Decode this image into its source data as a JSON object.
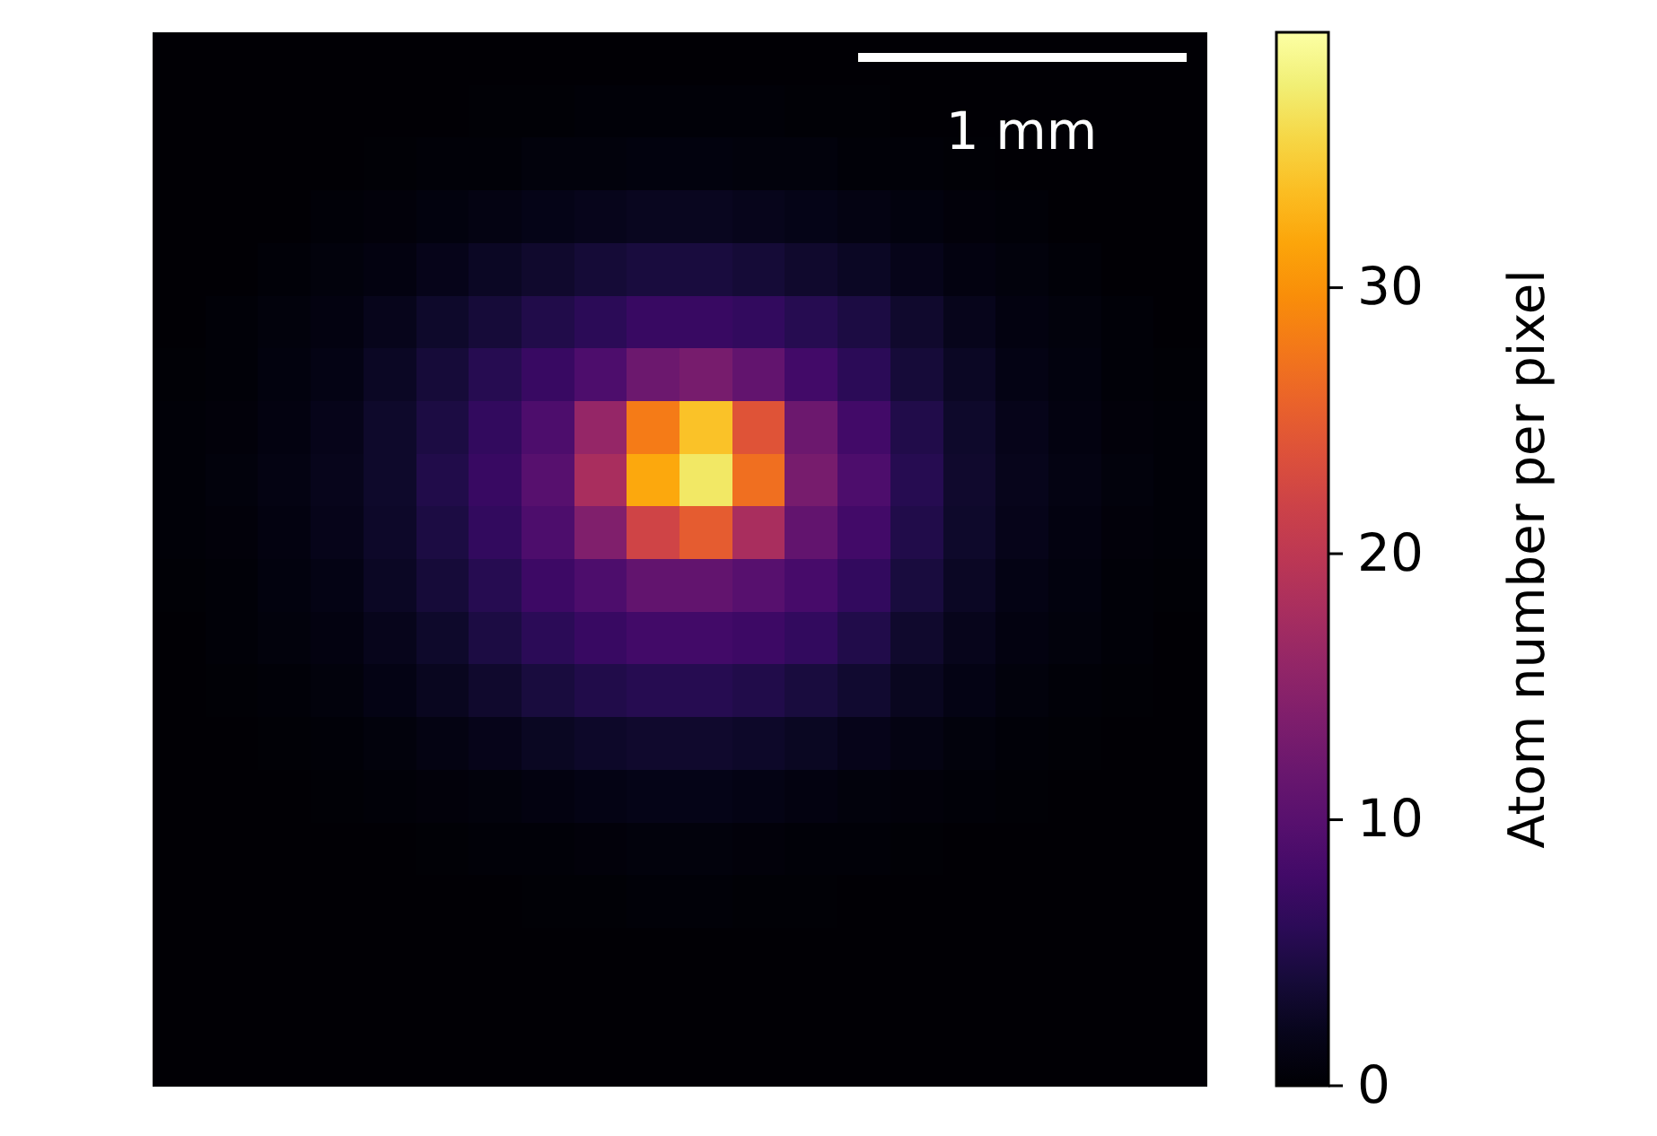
{
  "chart_data": {
    "type": "heatmap",
    "clabel": "Atom number per pixel",
    "annotations": [
      "1 mm"
    ],
    "tick_labels": false,
    "clim": [
      0,
      39.6
    ],
    "cticks": [
      0,
      10,
      20,
      30
    ],
    "categories": [
      null,
      null,
      null,
      null,
      null,
      null,
      null,
      null,
      null,
      null,
      null,
      null,
      null,
      null,
      null,
      null,
      null,
      null,
      null,
      null
    ],
    "y_categories": [
      null,
      null,
      null,
      null,
      null,
      null,
      null,
      null,
      null,
      null,
      null,
      null,
      null,
      null,
      null,
      null,
      null,
      null,
      null,
      null
    ],
    "cells": [
      [
        0.2,
        0.2,
        0.2,
        0.2,
        0.2,
        0.2,
        0.2,
        0.2,
        0.2,
        0.2,
        0.2,
        0.2,
        0.2,
        0.2,
        0.2,
        0.2,
        0.2,
        0.2,
        0.2,
        0.2
      ],
      [
        0.2,
        0.2,
        0.2,
        0.3,
        0.3,
        0.3,
        0.4,
        0.4,
        0.5,
        0.5,
        0.5,
        0.5,
        0.4,
        0.4,
        0.3,
        0.3,
        0.3,
        0.2,
        0.2,
        0.2
      ],
      [
        0.2,
        0.2,
        0.3,
        0.3,
        0.4,
        0.5,
        0.6,
        0.8,
        0.9,
        1,
        1,
        0.9,
        0.8,
        0.6,
        0.5,
        0.4,
        0.3,
        0.3,
        0.2,
        0.2
      ],
      [
        0.2,
        0.3,
        0.3,
        0.5,
        0.7,
        1,
        1.3,
        1.7,
        2,
        2.2,
        2.2,
        2,
        1.7,
        1.3,
        1,
        0.7,
        0.5,
        0.3,
        0.3,
        0.2
      ],
      [
        0.3,
        0.3,
        0.5,
        0.8,
        1.2,
        1.8,
        2.5,
        3.2,
        3.8,
        4.2,
        4.2,
        3.8,
        3.2,
        2.5,
        1.8,
        1.2,
        0.8,
        0.5,
        0.3,
        0.3
      ],
      [
        0.3,
        0.5,
        0.8,
        1.2,
        2,
        3,
        4,
        5,
        6,
        7,
        7,
        6.5,
        5.5,
        4.5,
        3.2,
        2,
        1.2,
        0.8,
        0.5,
        0.3
      ],
      [
        0.4,
        0.6,
        1,
        1.5,
        2.5,
        4,
        5.5,
        7,
        9,
        12,
        13,
        11,
        8,
        6,
        4,
        2.5,
        1.5,
        1,
        0.6,
        0.4
      ],
      [
        0.5,
        0.7,
        1.2,
        1.8,
        3,
        4.5,
        6.5,
        9,
        16,
        28,
        34,
        24,
        12,
        8,
        5,
        3,
        1.8,
        1.2,
        0.7,
        0.5
      ],
      [
        0.5,
        0.8,
        1.3,
        2,
        3,
        5,
        7,
        10,
        18,
        32,
        37,
        27,
        13,
        9,
        5.5,
        3.2,
        2,
        1.3,
        0.8,
        0.5
      ],
      [
        0.5,
        0.7,
        1.2,
        1.8,
        2.8,
        4.5,
        6.5,
        9,
        14,
        22,
        25,
        18,
        11,
        8,
        5,
        3,
        1.8,
        1.2,
        0.7,
        0.5
      ],
      [
        0.4,
        0.6,
        1,
        1.5,
        2.5,
        4,
        5.5,
        7.5,
        9,
        11,
        11,
        10,
        8.5,
        6.5,
        4.2,
        2.5,
        1.5,
        1,
        0.6,
        0.4
      ],
      [
        0.3,
        0.5,
        0.8,
        1.2,
        2,
        3,
        4.5,
        6,
        7,
        8,
        8,
        7.5,
        6.5,
        5,
        3.2,
        2,
        1.2,
        0.8,
        0.5,
        0.3
      ],
      [
        0.3,
        0.4,
        0.6,
        0.9,
        1.4,
        2.2,
        3.2,
        4.2,
        5,
        5.5,
        5.5,
        5,
        4.3,
        3.3,
        2.2,
        1.4,
        0.9,
        0.6,
        0.4,
        0.3
      ],
      [
        0.2,
        0.3,
        0.4,
        0.6,
        0.9,
        1.3,
        1.8,
        2.4,
        2.9,
        3.2,
        3.2,
        2.9,
        2.4,
        1.8,
        1.3,
        0.9,
        0.6,
        0.4,
        0.3,
        0.2
      ],
      [
        0.2,
        0.2,
        0.3,
        0.4,
        0.5,
        0.7,
        0.9,
        1.2,
        1.4,
        1.6,
        1.6,
        1.4,
        1.2,
        0.9,
        0.7,
        0.5,
        0.4,
        0.3,
        0.2,
        0.2
      ],
      [
        0.2,
        0.2,
        0.2,
        0.3,
        0.3,
        0.4,
        0.5,
        0.6,
        0.7,
        0.8,
        0.8,
        0.7,
        0.6,
        0.5,
        0.4,
        0.3,
        0.3,
        0.2,
        0.2,
        0.2
      ],
      [
        0.2,
        0.2,
        0.2,
        0.2,
        0.3,
        0.3,
        0.3,
        0.4,
        0.4,
        0.5,
        0.5,
        0.4,
        0.4,
        0.3,
        0.3,
        0.3,
        0.2,
        0.2,
        0.2,
        0.2
      ],
      [
        0.2,
        0.2,
        0.2,
        0.2,
        0.2,
        0.2,
        0.2,
        0.2,
        0.2,
        0.2,
        0.2,
        0.2,
        0.2,
        0.2,
        0.2,
        0.2,
        0.2,
        0.2,
        0.2,
        0.2
      ],
      [
        0.2,
        0.2,
        0.2,
        0.2,
        0.2,
        0.2,
        0.2,
        0.2,
        0.2,
        0.2,
        0.2,
        0.2,
        0.2,
        0.2,
        0.2,
        0.2,
        0.2,
        0.2,
        0.2,
        0.2
      ],
      [
        0.2,
        0.2,
        0.2,
        0.2,
        0.2,
        0.2,
        0.2,
        0.2,
        0.2,
        0.2,
        0.2,
        0.2,
        0.2,
        0.2,
        0.2,
        0.2,
        0.2,
        0.2,
        0.2,
        0.2
      ]
    ]
  }
}
